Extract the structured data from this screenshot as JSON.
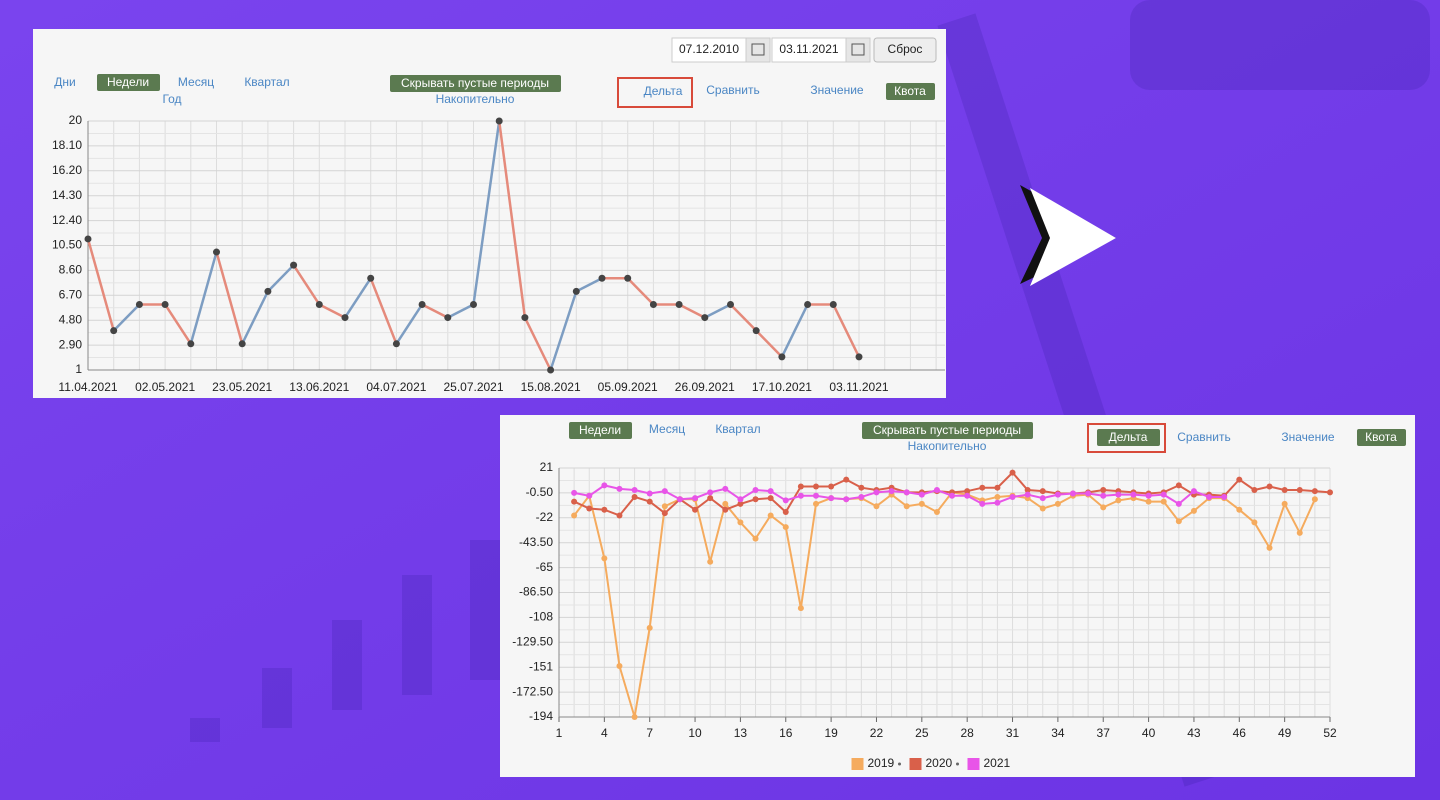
{
  "top_panel": {
    "date_from": "07.12.2010",
    "date_to": "03.11.2021",
    "reset": "Сброс",
    "periods": [
      "Дни",
      "Недели",
      "Месяц",
      "Квартал",
      "Год"
    ],
    "hide_empty": "Скрывать пустые периоды",
    "cumulative": "Накопительно",
    "delta": "Дельта",
    "compare": "Сравнить",
    "value": "Значение",
    "quota": "Квота"
  },
  "bottom_panel": {
    "periods": [
      "Недели",
      "Месяц",
      "Квартал"
    ],
    "hide_empty": "Скрывать пустые периоды",
    "cumulative": "Накопительно",
    "delta": "Дельта",
    "compare": "Сравнить",
    "value": "Значение",
    "quota": "Квота"
  },
  "chart_data": [
    {
      "type": "line",
      "categories": [
        "11.04.2021",
        null,
        null,
        "02.05.2021",
        null,
        null,
        "23.05.2021",
        null,
        null,
        "13.06.2021",
        null,
        null,
        "04.07.2021",
        null,
        null,
        "25.07.2021",
        null,
        null,
        "15.08.2021",
        null,
        null,
        "05.09.2021",
        null,
        null,
        "26.09.2021",
        null,
        null,
        "17.10.2021",
        null,
        null,
        "03.11.2021"
      ],
      "values": [
        11,
        4,
        6,
        6,
        3,
        10,
        3,
        7,
        9,
        6,
        5,
        8,
        3,
        6,
        5,
        6,
        20,
        5,
        1,
        7,
        8,
        8,
        6,
        6,
        5,
        6,
        4,
        2,
        6,
        6,
        2
      ],
      "up_color": "#7d9dc2",
      "down_color": "#e58a7b",
      "point_color": "#444444",
      "ylim": [
        1,
        20
      ],
      "yticks": [
        1,
        {
          "value": 2.9,
          "label": "2.90"
        },
        {
          "value": 4.8,
          "label": "4.80"
        },
        {
          "value": 6.7,
          "label": "6.70"
        },
        {
          "value": 8.6,
          "label": "8.60"
        },
        {
          "value": 10.5,
          "label": "10.50"
        },
        {
          "value": 12.4,
          "label": "12.40"
        },
        {
          "value": 14.3,
          "label": "14.30"
        },
        {
          "value": 16.2,
          "label": "16.20"
        },
        {
          "value": 18.1,
          "label": "18.10"
        },
        20
      ],
      "grid": true
    },
    {
      "type": "line",
      "x": [
        2,
        3,
        4,
        5,
        6,
        7,
        8,
        9,
        10,
        11,
        12,
        13,
        14,
        15,
        16,
        17,
        18,
        19,
        20,
        21,
        22,
        23,
        24,
        25,
        26,
        27,
        28,
        29,
        30,
        31,
        32,
        33,
        34,
        35,
        36,
        37,
        38,
        39,
        40,
        41,
        42,
        43,
        44,
        45,
        46,
        47,
        48,
        49,
        50,
        51,
        52
      ],
      "series": [
        {
          "name": "2019",
          "color": "#f5ab5e",
          "values": [
            -20,
            -3,
            -57,
            -150,
            -194,
            -117,
            -12,
            -6,
            -6,
            -60,
            -10,
            -26,
            -40,
            -20,
            -30,
            -100,
            -10,
            -5,
            -6,
            -5,
            -12,
            -2,
            -12,
            -10,
            -17,
            0,
            -2,
            -7,
            -4,
            -3,
            -5,
            -14,
            -10,
            -3,
            -2,
            -13,
            -7,
            -5,
            -8,
            -8,
            -25,
            -16,
            -5,
            -5,
            -15,
            -26,
            -48,
            -10,
            -35,
            -6,
            null
          ]
        },
        {
          "name": "2020",
          "color": "#d9604a",
          "values": [
            -8,
            -14,
            -15,
            -20,
            -4,
            -8,
            -18,
            -6,
            -15,
            -5,
            -15,
            -10,
            -6,
            -5,
            -17,
            5,
            5,
            5,
            11,
            4,
            2,
            4,
            0,
            0,
            1,
            0,
            1,
            4,
            4,
            17,
            2,
            1,
            -1,
            -1,
            0,
            2,
            1,
            0,
            -1,
            0,
            6,
            -2,
            -2,
            -3,
            11,
            2,
            5,
            2,
            2,
            1,
            0
          ]
        },
        {
          "name": "2021",
          "color": "#e855e8",
          "values": [
            -0.5,
            -3,
            6,
            3,
            2,
            -1,
            1,
            -6,
            -5,
            0,
            3,
            -6,
            2,
            1,
            -7,
            -3,
            -3,
            -5,
            -6,
            -4,
            0,
            1,
            0,
            -2,
            2,
            -3,
            -3,
            -10,
            -9,
            -4,
            -2,
            -5,
            -2,
            -1,
            -1,
            -3,
            -2,
            -2,
            -3,
            -2,
            -10,
            1,
            -4,
            -4,
            null,
            null,
            null,
            null,
            null,
            null,
            null
          ]
        }
      ],
      "xlim": [
        1,
        52
      ],
      "xticks": [
        1,
        4,
        7,
        10,
        13,
        16,
        19,
        22,
        25,
        28,
        31,
        34,
        37,
        40,
        43,
        46,
        49,
        52
      ],
      "ylim": [
        -194,
        21
      ],
      "yticks": [
        21,
        {
          "value": -0.5,
          "label": "-0.50"
        },
        -22,
        {
          "value": -43.5,
          "label": "-43.50"
        },
        -65,
        {
          "value": -86.5,
          "label": "-86.50"
        },
        -108,
        {
          "value": -129.5,
          "label": "-129.50"
        },
        -151,
        {
          "value": -172.5,
          "label": "-172.50"
        },
        -194
      ],
      "grid": true,
      "legend": "bottom"
    }
  ]
}
